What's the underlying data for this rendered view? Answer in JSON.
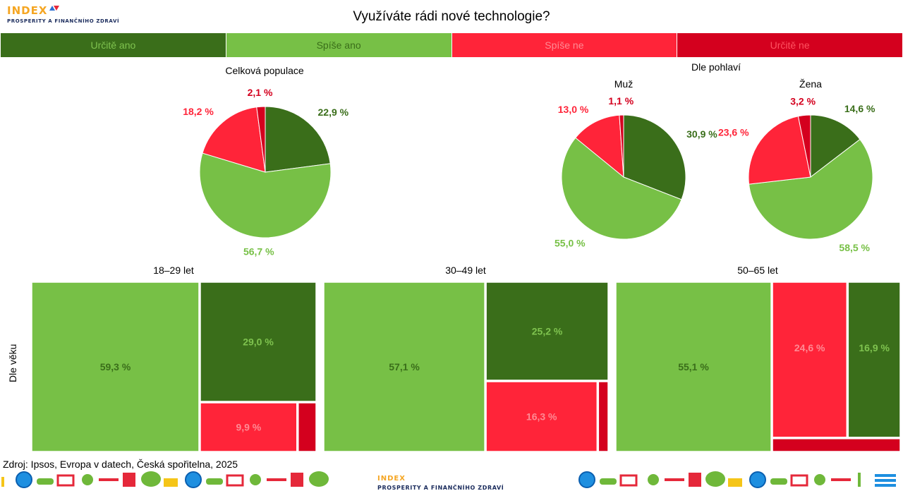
{
  "brand": {
    "word": "INDEX",
    "tagline": "PROSPERITY A FINANČNÍHO ZDRAVÍ"
  },
  "title": "Využíváte rádi nové technologie?",
  "legend": [
    {
      "label": "Určitě ano",
      "color": "#3a6e1a",
      "text": "#7fc34f"
    },
    {
      "label": "Spíše ano",
      "color": "#77c046",
      "text": "#3a6e1a"
    },
    {
      "label": "Spíše ne",
      "color": "#ff2439",
      "text": "#ff8a94"
    },
    {
      "label": "Určitě ne",
      "color": "#d4001e",
      "text": "#ff5260"
    }
  ],
  "sections": {
    "total": "Celková populace",
    "gender": "Dle pohlaví",
    "age_axis": "Dle věku"
  },
  "chart_data": [
    {
      "type": "pie",
      "title": "Celková populace",
      "categories": [
        "Určitě ano",
        "Spíše ano",
        "Spíše ne",
        "Určitě ne"
      ],
      "values": [
        22.9,
        56.7,
        18.2,
        2.1
      ],
      "labels": [
        "22,9 %",
        "56,7 %",
        "18,2 %",
        "2,1 %"
      ]
    },
    {
      "type": "pie",
      "title": "Muž",
      "categories": [
        "Určitě ano",
        "Spíše ano",
        "Spíše ne",
        "Určitě ne"
      ],
      "values": [
        30.9,
        55.0,
        13.0,
        1.1
      ],
      "labels": [
        "30,9 %",
        "55,0 %",
        "13,0 %",
        "1,1 %"
      ]
    },
    {
      "type": "pie",
      "title": "Žena",
      "categories": [
        "Určitě ano",
        "Spíše ano",
        "Spíše ne",
        "Určitě ne"
      ],
      "values": [
        14.6,
        58.5,
        23.6,
        3.2
      ],
      "labels": [
        "14,6 %",
        "58,5 %",
        "23,6 %",
        "3,2 %"
      ]
    },
    {
      "type": "treemap",
      "title": "18–29 let",
      "categories": [
        "Spíše ano",
        "Určitě ano",
        "Spíše ne",
        "Určitě ne"
      ],
      "values": [
        59.3,
        29.0,
        9.9,
        1.8
      ],
      "labels": [
        "59,3 %",
        "29,0 %",
        "9,9 %",
        ""
      ]
    },
    {
      "type": "treemap",
      "title": "30–49 let",
      "categories": [
        "Spíše ano",
        "Určitě ano",
        "Spíše ne",
        "Určitě ne"
      ],
      "values": [
        57.1,
        25.2,
        16.3,
        1.4
      ],
      "labels": [
        "57,1 %",
        "25,2 %",
        "16,3 %",
        ""
      ]
    },
    {
      "type": "treemap",
      "title": "50–65 let",
      "categories": [
        "Spíše ano",
        "Spíše ne",
        "Určitě ano",
        "Určitě ne"
      ],
      "values": [
        55.1,
        24.6,
        16.9,
        3.4
      ],
      "labels": [
        "55,1 %",
        "24,6 %",
        "16,9 %",
        ""
      ]
    }
  ],
  "source": "Zdroj: Ipsos, Evropa v datech, Česká spořitelna, 2025"
}
